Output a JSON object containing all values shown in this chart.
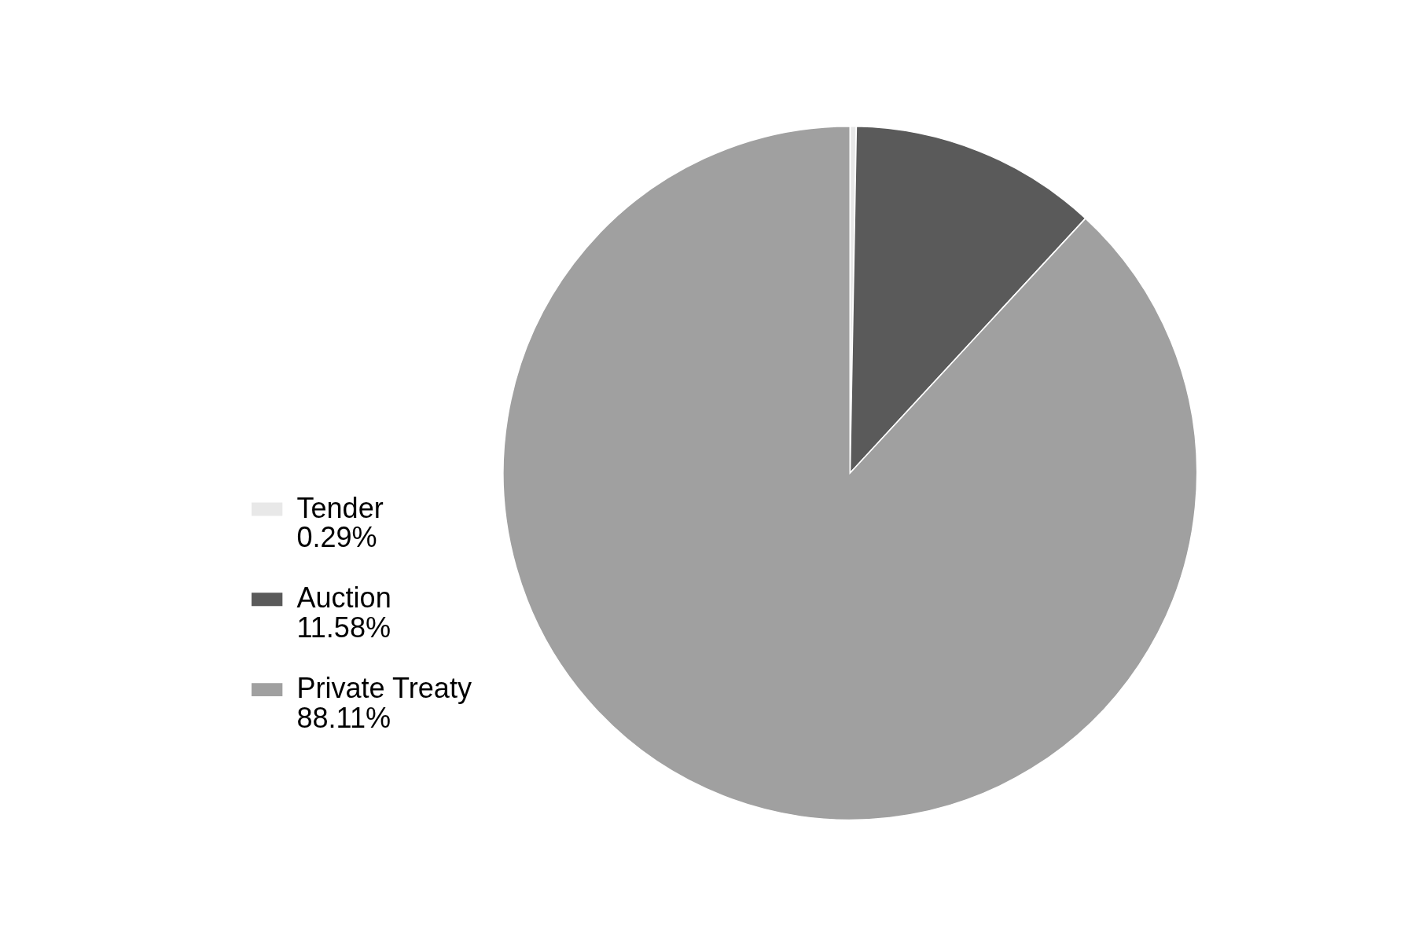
{
  "chart_data": {
    "type": "pie",
    "categories": [
      "Tender",
      "Auction",
      "Private Treaty"
    ],
    "values": [
      0.29,
      11.58,
      88.11
    ],
    "value_labels": [
      "0.29%",
      "11.58%",
      "88.11%"
    ],
    "colors": [
      "#e8e8e8",
      "#5a5a5a",
      "#a0a0a0"
    ],
    "legend": "left"
  }
}
